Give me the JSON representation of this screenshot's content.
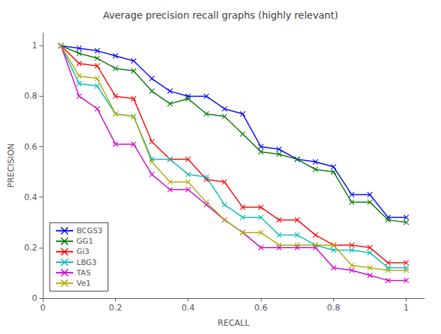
{
  "chart_data": {
    "type": "line",
    "title": "Average precision recall graphs (highly relevant)",
    "xlabel": "RECALL",
    "ylabel": "PRECISION",
    "x": [
      0.05,
      0.1,
      0.15,
      0.2,
      0.25,
      0.3,
      0.35,
      0.4,
      0.45,
      0.5,
      0.55,
      0.6,
      0.65,
      0.7,
      0.75,
      0.8,
      0.85,
      0.9,
      0.95,
      1.0
    ],
    "series": [
      {
        "name": "BCGS3",
        "color": "#0000FF",
        "values": [
          1.0,
          0.99,
          0.98,
          0.96,
          0.94,
          0.87,
          0.82,
          0.8,
          0.8,
          0.75,
          0.73,
          0.6,
          0.59,
          0.55,
          0.54,
          0.52,
          0.41,
          0.41,
          0.32,
          0.32
        ]
      },
      {
        "name": "GG1",
        "color": "#007700",
        "values": [
          1.0,
          0.97,
          0.95,
          0.91,
          0.9,
          0.82,
          0.77,
          0.79,
          0.73,
          0.72,
          0.65,
          0.58,
          0.57,
          0.55,
          0.51,
          0.5,
          0.38,
          0.38,
          0.31,
          0.3
        ]
      },
      {
        "name": "Gi3",
        "color": "#FF0000",
        "values": [
          1.0,
          0.93,
          0.92,
          0.8,
          0.79,
          0.62,
          0.55,
          0.55,
          0.47,
          0.46,
          0.36,
          0.36,
          0.31,
          0.31,
          0.25,
          0.21,
          0.21,
          0.2,
          0.14,
          0.14
        ]
      },
      {
        "name": "LBG3",
        "color": "#00BBBB",
        "values": [
          1.0,
          0.85,
          0.84,
          0.73,
          0.72,
          0.55,
          0.55,
          0.49,
          0.48,
          0.37,
          0.32,
          0.32,
          0.25,
          0.25,
          0.21,
          0.19,
          0.19,
          0.18,
          0.12,
          0.12
        ]
      },
      {
        "name": "TAS",
        "color": "#CC00CC",
        "values": [
          1.0,
          0.8,
          0.75,
          0.61,
          0.61,
          0.49,
          0.43,
          0.43,
          0.37,
          0.31,
          0.26,
          0.2,
          0.2,
          0.2,
          0.2,
          0.12,
          0.11,
          0.09,
          0.07,
          0.07
        ]
      },
      {
        "name": "Ve1",
        "color": "#AAAA00",
        "values": [
          1.0,
          0.88,
          0.87,
          0.73,
          0.72,
          0.54,
          0.46,
          0.46,
          0.38,
          0.31,
          0.26,
          0.26,
          0.21,
          0.21,
          0.21,
          0.21,
          0.13,
          0.12,
          0.11,
          0.11
        ]
      }
    ],
    "xlim": [
      0,
      1.05
    ],
    "ylim": [
      0,
      1.05
    ],
    "xticks": [
      0,
      0.2,
      0.4,
      0.6,
      0.8,
      1
    ],
    "yticks": [
      0,
      0.2,
      0.4,
      0.6,
      0.8,
      1
    ],
    "marker": "x",
    "grid": false,
    "legend": "lower left"
  }
}
